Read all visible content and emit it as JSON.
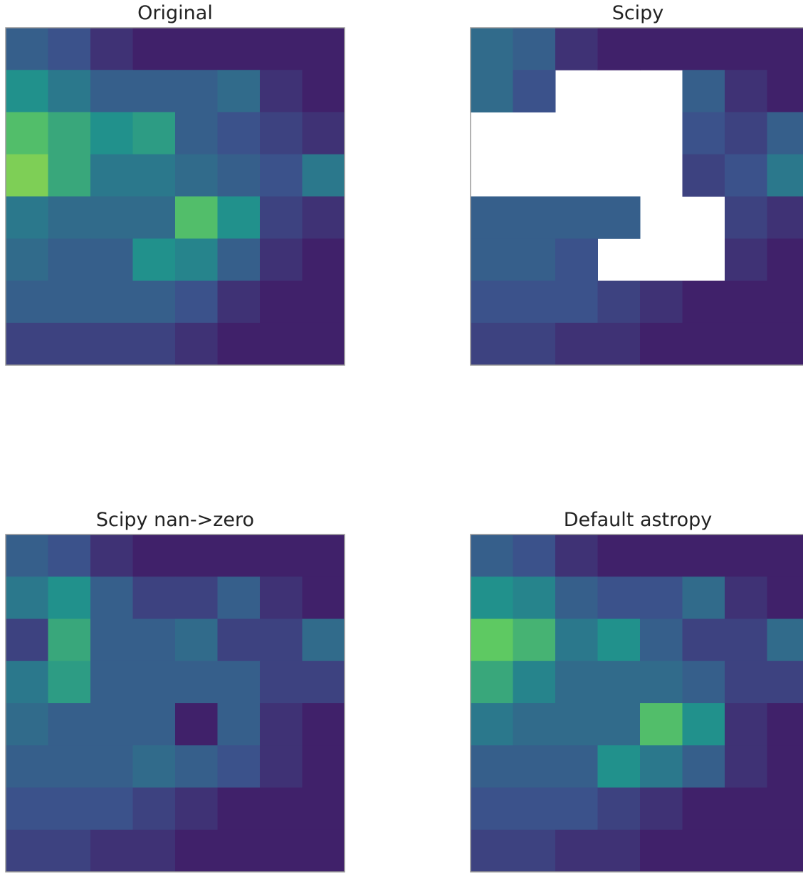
{
  "chart_data": [
    {
      "type": "heatmap",
      "title": "Original",
      "colormap": "viridis",
      "values": [
        [
          0.3,
          0.25,
          0.15,
          0.1,
          0.1,
          0.1,
          0.1,
          0.1
        ],
        [
          0.5,
          0.4,
          0.3,
          0.3,
          0.3,
          0.35,
          0.15,
          0.1
        ],
        [
          0.7,
          0.6,
          0.5,
          0.55,
          0.3,
          0.25,
          0.2,
          0.15
        ],
        [
          0.8,
          0.6,
          0.4,
          0.4,
          0.35,
          0.3,
          0.25,
          0.4
        ],
        [
          0.4,
          0.35,
          0.35,
          0.35,
          0.7,
          0.5,
          0.2,
          0.15
        ],
        [
          0.35,
          0.3,
          0.3,
          0.5,
          0.45,
          0.3,
          0.15,
          0.1
        ],
        [
          0.3,
          0.3,
          0.3,
          0.3,
          0.25,
          0.15,
          0.1,
          0.1
        ],
        [
          0.2,
          0.2,
          0.2,
          0.2,
          0.15,
          0.1,
          0.1,
          0.1
        ]
      ]
    },
    {
      "type": "heatmap",
      "title": "Scipy",
      "colormap": "viridis",
      "values": [
        [
          0.35,
          0.3,
          0.15,
          0.1,
          0.1,
          0.1,
          0.1,
          0.1
        ],
        [
          0.35,
          0.25,
          null,
          null,
          null,
          0.3,
          0.15,
          0.1
        ],
        [
          null,
          null,
          null,
          null,
          null,
          0.25,
          0.2,
          0.3
        ],
        [
          null,
          null,
          null,
          null,
          null,
          0.2,
          0.25,
          0.4
        ],
        [
          0.3,
          0.3,
          0.3,
          0.3,
          null,
          null,
          0.2,
          0.15
        ],
        [
          0.3,
          0.3,
          0.25,
          null,
          null,
          null,
          0.15,
          0.1
        ],
        [
          0.25,
          0.25,
          0.25,
          0.2,
          0.15,
          0.1,
          0.1,
          0.1
        ],
        [
          0.2,
          0.2,
          0.15,
          0.15,
          0.1,
          0.1,
          0.1,
          0.1
        ]
      ]
    },
    {
      "type": "heatmap",
      "title": "Scipy nan->zero",
      "colormap": "viridis",
      "values": [
        [
          0.3,
          0.25,
          0.15,
          0.1,
          0.1,
          0.1,
          0.1,
          0.1
        ],
        [
          0.4,
          0.5,
          0.3,
          0.2,
          0.2,
          0.3,
          0.15,
          0.1
        ],
        [
          0.2,
          0.6,
          0.3,
          0.3,
          0.35,
          0.2,
          0.2,
          0.35
        ],
        [
          0.4,
          0.55,
          0.3,
          0.3,
          0.3,
          0.3,
          0.2,
          0.2
        ],
        [
          0.35,
          0.3,
          0.3,
          0.3,
          0.1,
          0.3,
          0.15,
          0.1
        ],
        [
          0.3,
          0.3,
          0.3,
          0.35,
          0.3,
          0.25,
          0.15,
          0.1
        ],
        [
          0.25,
          0.25,
          0.25,
          0.2,
          0.15,
          0.1,
          0.1,
          0.1
        ],
        [
          0.2,
          0.2,
          0.15,
          0.15,
          0.1,
          0.1,
          0.1,
          0.1
        ]
      ]
    },
    {
      "type": "heatmap",
      "title": "Default astropy",
      "colormap": "viridis",
      "values": [
        [
          0.3,
          0.25,
          0.15,
          0.1,
          0.1,
          0.1,
          0.1,
          0.1
        ],
        [
          0.5,
          0.45,
          0.3,
          0.25,
          0.25,
          0.35,
          0.15,
          0.1
        ],
        [
          0.75,
          0.65,
          0.4,
          0.5,
          0.3,
          0.2,
          0.2,
          0.35
        ],
        [
          0.6,
          0.45,
          0.35,
          0.35,
          0.35,
          0.3,
          0.2,
          0.2
        ],
        [
          0.4,
          0.35,
          0.35,
          0.35,
          0.7,
          0.5,
          0.15,
          0.1
        ],
        [
          0.3,
          0.3,
          0.3,
          0.5,
          0.4,
          0.3,
          0.15,
          0.1
        ],
        [
          0.25,
          0.25,
          0.25,
          0.2,
          0.15,
          0.1,
          0.1,
          0.1
        ],
        [
          0.2,
          0.2,
          0.15,
          0.15,
          0.1,
          0.1,
          0.1,
          0.1
        ]
      ]
    }
  ]
}
